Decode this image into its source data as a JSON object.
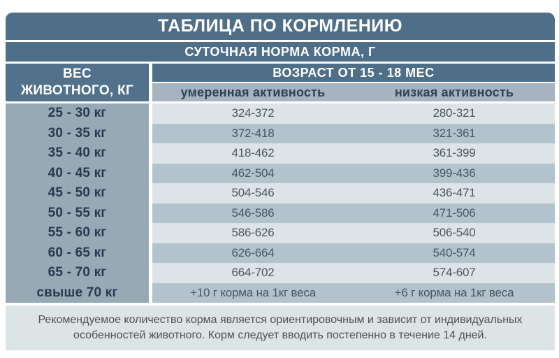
{
  "title": "ТАБЛИЦА ПО КОРМЛЕНИЮ",
  "subtitle": "СУТОЧНАЯ НОРМА КОРМА, Г",
  "weight_header": {
    "line1": "ВЕС",
    "line2": "ЖИВОТНОГО, КГ"
  },
  "age_header": "ВОЗРАСТ ОТ 15 - 18 МЕС",
  "activity_columns": [
    "умеренная активность",
    "низкая активность"
  ],
  "rows": [
    {
      "weight": "25 - 30 кг",
      "moderate": "324-372",
      "low": "280-321"
    },
    {
      "weight": "30 - 35 кг",
      "moderate": "372-418",
      "low": "321-361"
    },
    {
      "weight": "35 - 40 кг",
      "moderate": "418-462",
      "low": "361-399"
    },
    {
      "weight": "40 - 45 кг",
      "moderate": "462-504",
      "low": "399-436"
    },
    {
      "weight": "45 - 50 кг",
      "moderate": "504-546",
      "low": "436-471"
    },
    {
      "weight": "50 - 55 кг",
      "moderate": "546-586",
      "low": "471-506"
    },
    {
      "weight": "55 - 60 кг",
      "moderate": "586-626",
      "low": "506-540"
    },
    {
      "weight": "60 - 65 кг",
      "moderate": "626-664",
      "low": "540-574"
    },
    {
      "weight": "65 - 70 кг",
      "moderate": "664-702",
      "low": "574-607"
    },
    {
      "weight": "свыше 70 кг",
      "moderate": "+10 г корма на 1кг веса",
      "low": "+6 г корма на 1кг веса"
    }
  ],
  "note": "Рекомендуемое количество корма является ориентировочным и зависит от индивидуальных особенностей животного. Корм следует вводить постепенно в течение 14 дней.",
  "colors": {
    "bar_blue": "#4f6e88",
    "weight_column": "#98a9b6",
    "activity_row": "#a7b3bf",
    "stripe_light": "#dde4e7",
    "stripe_dark": "#b3c3cd",
    "note_bg": "#dde4e6",
    "navy_text": "#243a4e",
    "value_text": "#4a5560"
  }
}
